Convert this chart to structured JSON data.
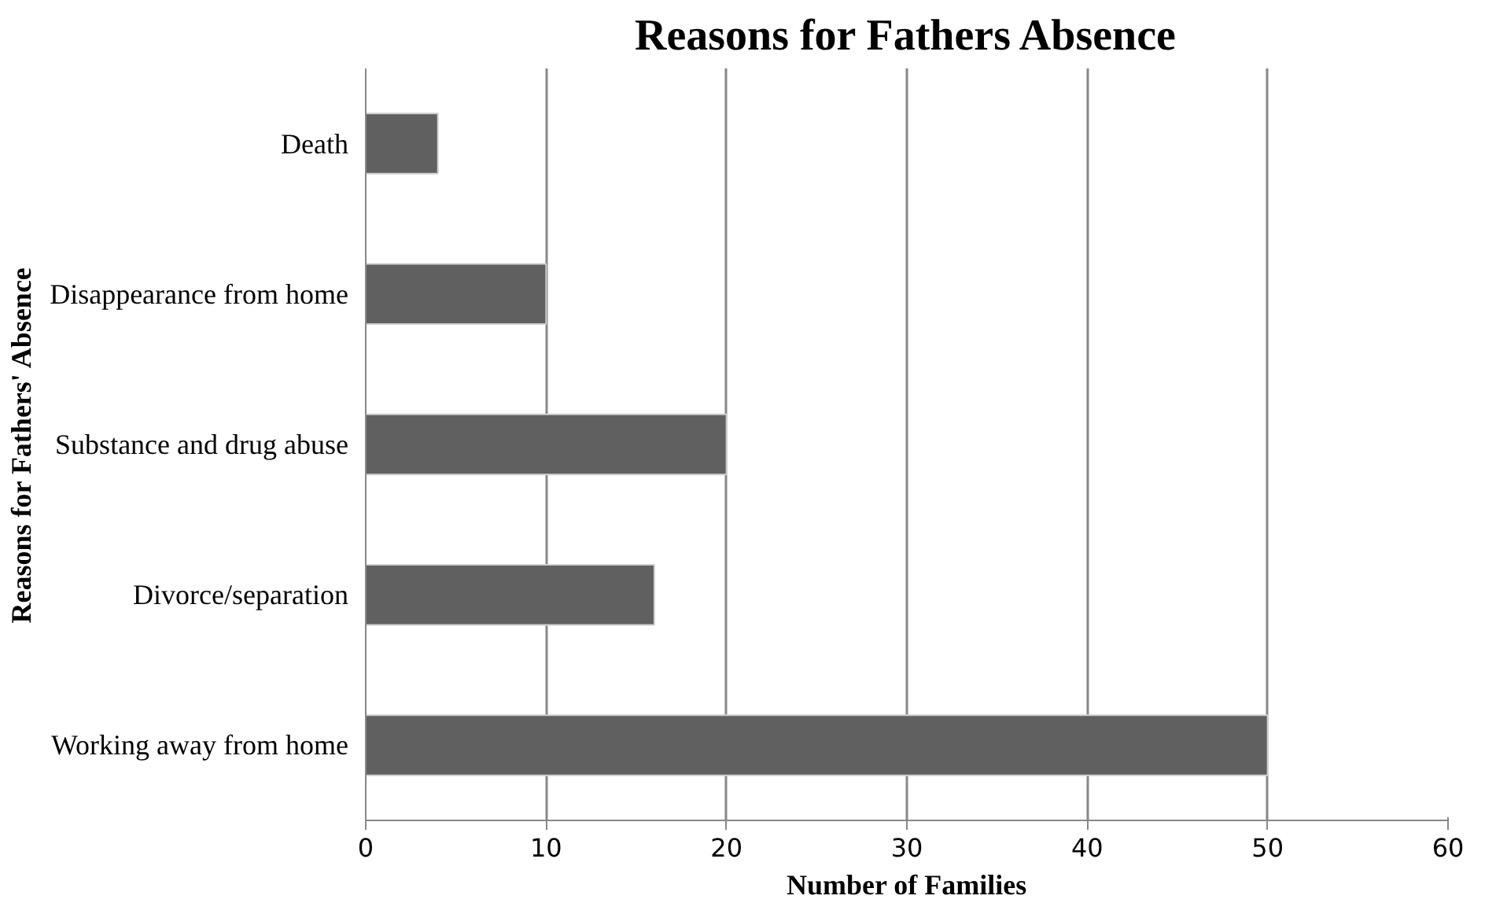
{
  "chart_data": {
    "type": "bar",
    "orientation": "horizontal",
    "title": "Reasons for Fathers Absence",
    "xlabel": "Number of Families",
    "ylabel": "Reasons for Fathers' Absence",
    "categories": [
      "Death",
      "Disappearance from home",
      "Substance and drug abuse",
      "Divorce/separation",
      "Working away from home"
    ],
    "values": [
      4,
      10,
      20,
      16,
      50
    ],
    "color": "#606060",
    "xlim": [
      0,
      60
    ],
    "xticks": [
      0,
      10,
      20,
      30,
      40,
      50,
      60
    ],
    "grid": "x"
  }
}
